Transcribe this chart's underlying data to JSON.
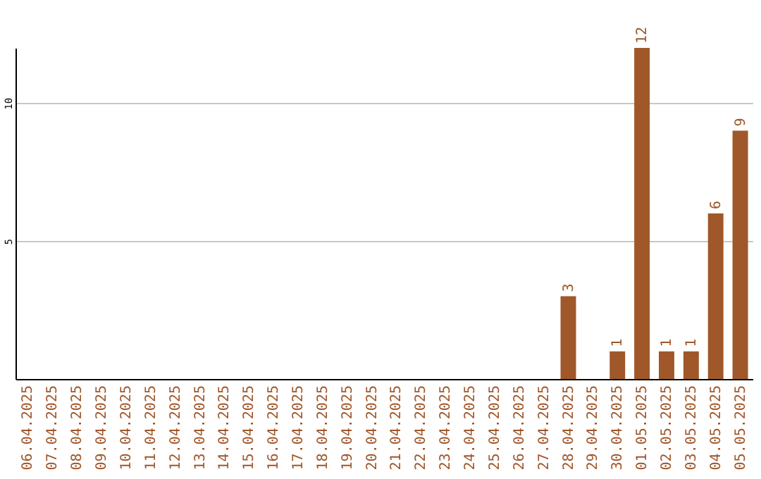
{
  "chart_data": {
    "type": "bar",
    "categories": [
      "06.04.2025",
      "07.04.2025",
      "08.04.2025",
      "09.04.2025",
      "10.04.2025",
      "11.04.2025",
      "12.04.2025",
      "13.04.2025",
      "14.04.2025",
      "15.04.2025",
      "16.04.2025",
      "17.04.2025",
      "18.04.2025",
      "19.04.2025",
      "20.04.2025",
      "21.04.2025",
      "22.04.2025",
      "23.04.2025",
      "24.04.2025",
      "25.04.2025",
      "26.04.2025",
      "27.04.2025",
      "28.04.2025",
      "29.04.2025",
      "30.04.2025",
      "01.05.2025",
      "02.05.2025",
      "03.05.2025",
      "04.05.2025",
      "05.05.2025"
    ],
    "values": [
      0,
      0,
      0,
      0,
      0,
      0,
      0,
      0,
      0,
      0,
      0,
      0,
      0,
      0,
      0,
      0,
      0,
      0,
      0,
      0,
      0,
      0,
      3,
      0,
      1,
      12,
      1,
      1,
      6,
      9
    ],
    "value_labels": [
      null,
      null,
      null,
      null,
      null,
      null,
      null,
      null,
      null,
      null,
      null,
      null,
      null,
      null,
      null,
      null,
      null,
      null,
      null,
      null,
      null,
      null,
      "3",
      null,
      "1",
      "12",
      "1",
      "1",
      "6",
      "9"
    ],
    "color": "#a0572a",
    "ylim": [
      0,
      12
    ],
    "yticks": [
      5,
      10
    ],
    "grid": "y"
  }
}
